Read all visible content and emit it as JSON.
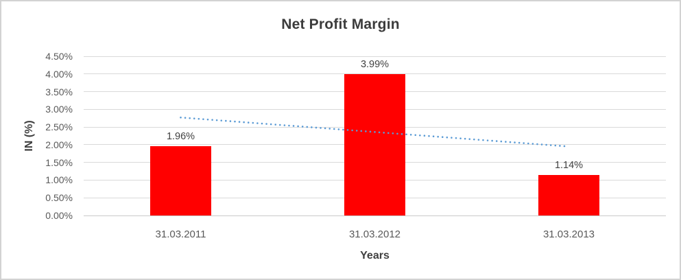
{
  "window": {
    "background_color": "#ffffff",
    "border_color": "#d2d2d2"
  },
  "chart_data": {
    "type": "bar",
    "title": "Net Profit Margin",
    "xlabel": "Years",
    "ylabel": "IN (%)",
    "categories": [
      "31.03.2011",
      "31.03.2012",
      "31.03.2013"
    ],
    "values": [
      1.96,
      3.99,
      1.14
    ],
    "data_labels": [
      "1.96%",
      "3.99%",
      "1.14%"
    ],
    "ylim": [
      0,
      4.5
    ],
    "ytick_step": 0.5,
    "yticks": [
      {
        "value": 0.0,
        "label": "0.00%"
      },
      {
        "value": 0.5,
        "label": "0.50%"
      },
      {
        "value": 1.0,
        "label": "1.00%"
      },
      {
        "value": 1.5,
        "label": "1.50%"
      },
      {
        "value": 2.0,
        "label": "2.00%"
      },
      {
        "value": 2.5,
        "label": "2.50%"
      },
      {
        "value": 3.0,
        "label": "3.00%"
      },
      {
        "value": 3.5,
        "label": "3.50%"
      },
      {
        "value": 4.0,
        "label": "4.00%"
      },
      {
        "value": 4.5,
        "label": "4.50%"
      }
    ],
    "grid": true,
    "legend": "none",
    "bar_color": "#ff0000",
    "title_color": "#3b3b3b",
    "tick_label_color": "#595959",
    "data_label_color": "#404040",
    "gridline_color": "#d9d9d9",
    "trendline": {
      "kind": "linear",
      "style": "dotted",
      "color": "#5b9bd5",
      "start_value": 2.77,
      "end_value": 1.95
    }
  }
}
